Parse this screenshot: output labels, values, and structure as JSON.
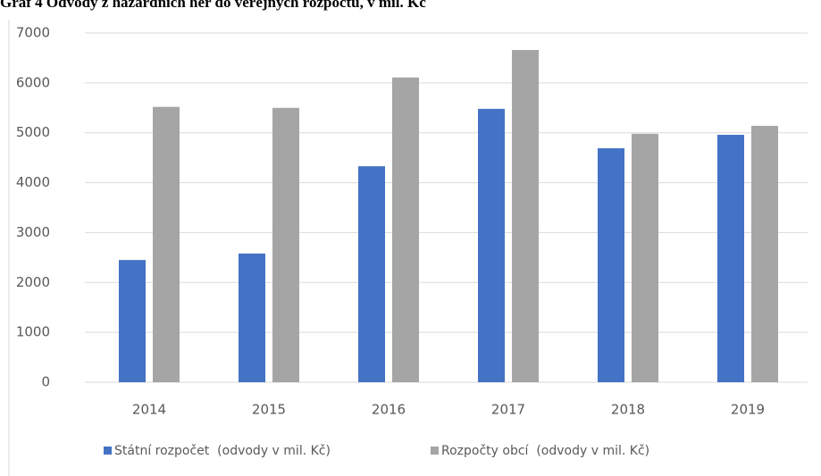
{
  "chart_data": {
    "type": "bar",
    "title": "Graf 4 Odvody z hazardních her do veřejných rozpočtů, v mil. Kč",
    "categories": [
      "2014",
      "2015",
      "2016",
      "2017",
      "2018",
      "2019"
    ],
    "series": [
      {
        "name": "Státní rozpočet  (odvody v mil. Kč)",
        "color": "#4472c4",
        "values": [
          2450,
          2580,
          4330,
          5480,
          4690,
          4960
        ]
      },
      {
        "name": "Rozpočty obcí  (odvody v mil. Kč)",
        "color": "#a5a5a5",
        "values": [
          5520,
          5500,
          6110,
          6660,
          4980,
          5140
        ]
      }
    ],
    "ylim": [
      0,
      7000
    ],
    "yticks": [
      0,
      1000,
      2000,
      3000,
      4000,
      5000,
      6000,
      7000
    ],
    "grid": true,
    "legend": "bottom"
  }
}
